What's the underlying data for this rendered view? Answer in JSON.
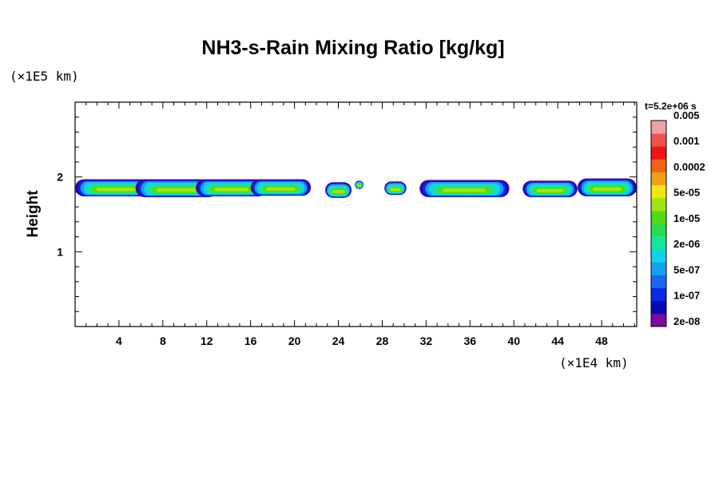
{
  "chart_data": {
    "type": "heatmap",
    "title": "NH3-s-Rain Mixing Ratio [kg/kg]",
    "ylabel": "Height",
    "y_unit": "(×1E5 km)",
    "x_unit": "(×1E4 km)",
    "time_label": "t=5.2e+06 s",
    "xlim": [
      0,
      51.2
    ],
    "ylim": [
      0,
      3.0
    ],
    "x_ticks": [
      "4",
      "8",
      "12",
      "16",
      "20",
      "24",
      "28",
      "32",
      "36",
      "40",
      "44",
      "48"
    ],
    "y_ticks": [
      "1",
      "2"
    ],
    "colorbar": {
      "colors": [
        "#7a0aa0",
        "#0a0ab0",
        "#0a28e6",
        "#1e64f0",
        "#14a0f0",
        "#14d2e6",
        "#14e6a0",
        "#28dc50",
        "#50dc14",
        "#a0e614",
        "#f0e614",
        "#f0a014",
        "#f06414",
        "#f01414",
        "#f05050",
        "#f0a0a0"
      ],
      "labels": [
        "2e-08",
        "1e-07",
        "5e-07",
        "2e-06",
        "1e-05",
        "5e-05",
        "0.0002",
        "0.001",
        "0.005"
      ]
    },
    "cloud_bands": [
      {
        "x0": 0.0,
        "x1": 7.5,
        "ybot": 1.74,
        "ytop": 1.97
      },
      {
        "x0": 5.5,
        "x1": 13.0,
        "ybot": 1.73,
        "ytop": 1.97
      },
      {
        "x0": 11.0,
        "x1": 17.5,
        "ybot": 1.74,
        "ytop": 1.97
      },
      {
        "x0": 16.0,
        "x1": 21.5,
        "ybot": 1.75,
        "ytop": 1.97
      },
      {
        "x0": 22.8,
        "x1": 25.2,
        "ybot": 1.72,
        "ytop": 1.93
      },
      {
        "x0": 25.5,
        "x1": 26.3,
        "ybot": 1.84,
        "ytop": 1.95
      },
      {
        "x0": 28.2,
        "x1": 30.2,
        "ybot": 1.76,
        "ytop": 1.94
      },
      {
        "x0": 31.4,
        "x1": 39.6,
        "ybot": 1.73,
        "ytop": 1.96
      },
      {
        "x0": 40.8,
        "x1": 45.8,
        "ybot": 1.73,
        "ytop": 1.95
      },
      {
        "x0": 45.8,
        "x1": 51.2,
        "ybot": 1.74,
        "ytop": 1.98
      }
    ]
  }
}
